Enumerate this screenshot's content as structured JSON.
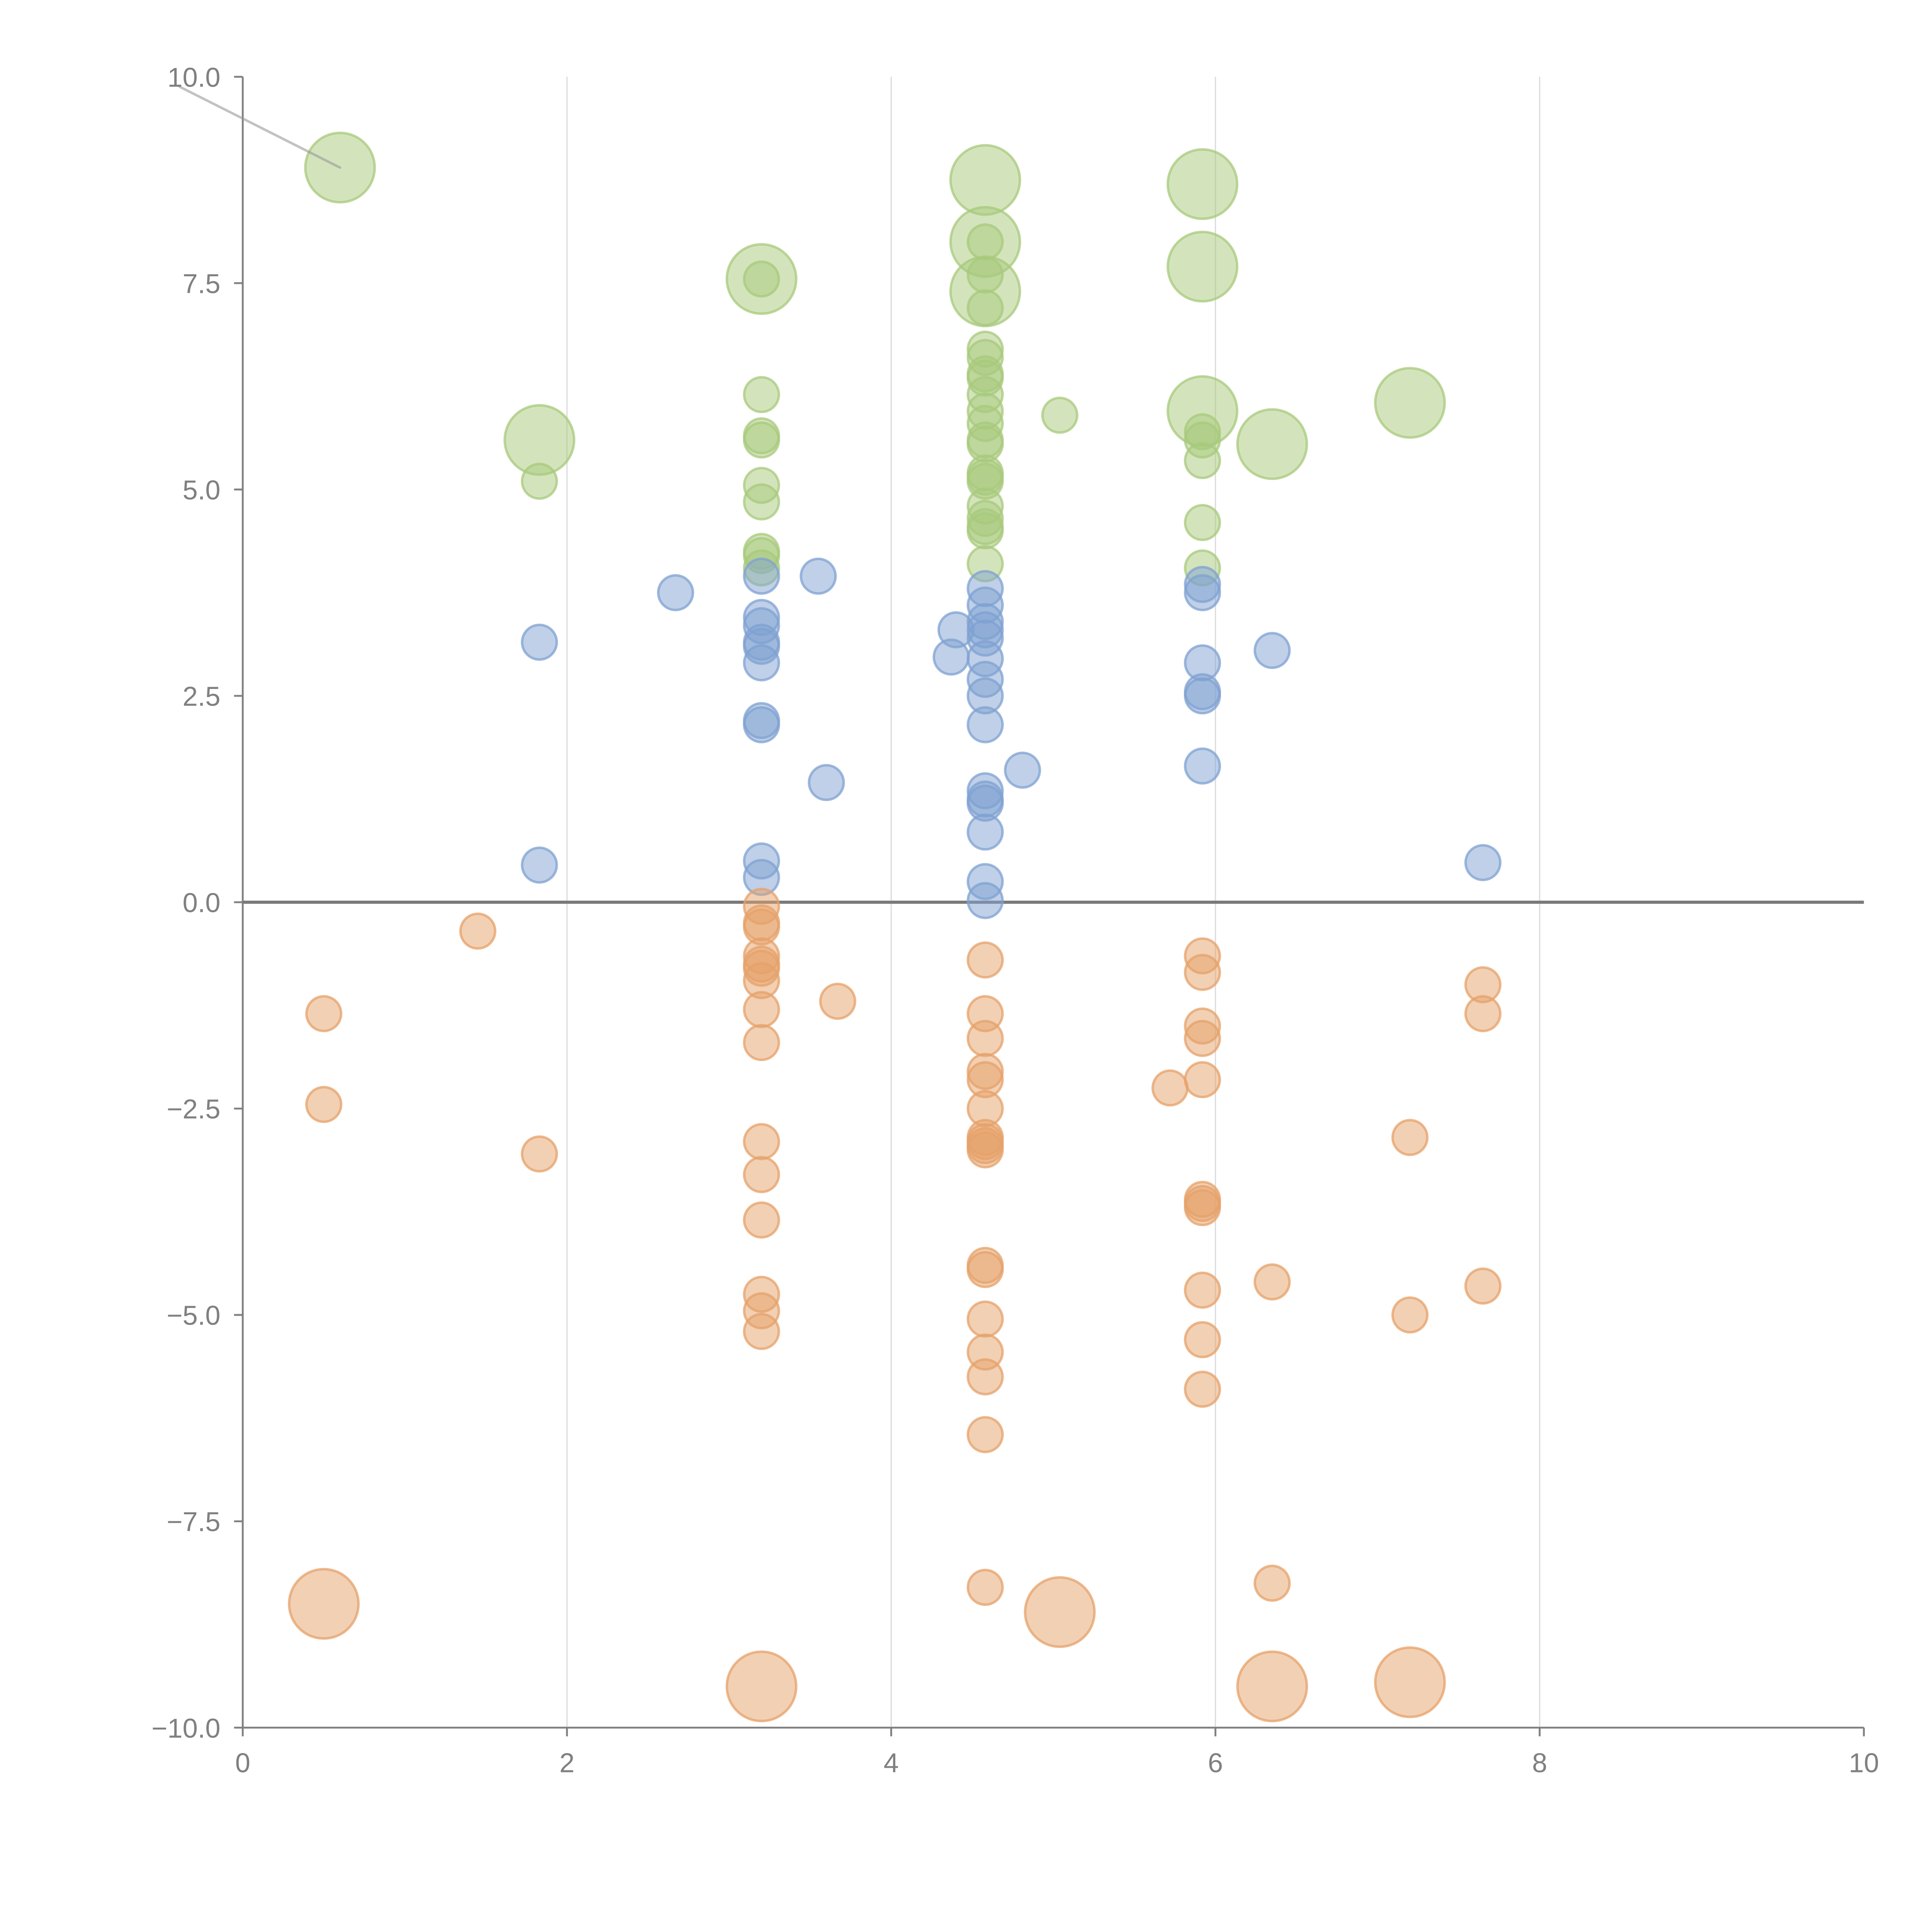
{
  "chart_data": {
    "type": "scatter",
    "title": "",
    "xlabel": "",
    "ylabel": "",
    "xlim": [
      0,
      10
    ],
    "ylim": [
      -10,
      10
    ],
    "grid": "vertical",
    "x_ticks": [
      "0",
      "2",
      "4",
      "6",
      "8",
      "10"
    ],
    "x_tick_values": [
      0,
      2,
      4,
      6,
      8,
      10
    ],
    "y_ticks": [
      "10.0",
      "7.5",
      "5.0",
      "2.5",
      "0.0",
      "−2.5",
      "−5.0",
      "−7.5",
      "−10.0"
    ],
    "y_tick_values": [
      10,
      7.5,
      5,
      2.5,
      0,
      -2.5,
      -5,
      -7.5,
      -10
    ],
    "size_note": "point format [x, y, size]; size 1 = small bubble, 4 = large bubble",
    "series": [
      {
        "name": "green",
        "color": "#a8c97c",
        "points": [
          [
            0.6,
            8.9,
            4
          ],
          [
            1.83,
            5.6,
            4
          ],
          [
            1.83,
            5.1,
            1
          ],
          [
            3.2,
            7.55,
            4
          ],
          [
            3.2,
            7.55,
            1
          ],
          [
            3.2,
            6.15,
            1
          ],
          [
            3.2,
            5.65,
            1
          ],
          [
            3.2,
            5.6,
            1
          ],
          [
            3.2,
            5.05,
            1
          ],
          [
            3.2,
            4.85,
            1
          ],
          [
            3.2,
            4.25,
            1
          ],
          [
            3.2,
            4.2,
            1
          ],
          [
            3.2,
            4.05,
            1
          ],
          [
            4.58,
            8.75,
            4
          ],
          [
            4.58,
            8.0,
            4
          ],
          [
            4.58,
            8.0,
            1
          ],
          [
            4.58,
            7.6,
            1
          ],
          [
            4.58,
            7.4,
            4
          ],
          [
            4.58,
            7.2,
            1
          ],
          [
            4.58,
            6.7,
            1
          ],
          [
            4.58,
            6.6,
            1
          ],
          [
            4.58,
            6.4,
            1
          ],
          [
            4.58,
            6.35,
            1
          ],
          [
            4.58,
            6.15,
            1
          ],
          [
            4.58,
            5.95,
            1
          ],
          [
            4.58,
            5.8,
            1
          ],
          [
            4.58,
            5.6,
            1
          ],
          [
            4.58,
            5.55,
            1
          ],
          [
            4.58,
            5.2,
            1
          ],
          [
            4.58,
            5.15,
            1
          ],
          [
            4.58,
            5.1,
            1
          ],
          [
            4.58,
            4.8,
            1
          ],
          [
            4.58,
            4.65,
            1
          ],
          [
            4.58,
            4.55,
            1
          ],
          [
            4.58,
            4.5,
            1
          ],
          [
            4.58,
            4.1,
            1
          ],
          [
            5.04,
            5.9,
            1
          ],
          [
            5.92,
            8.7,
            4
          ],
          [
            5.92,
            7.7,
            4
          ],
          [
            5.92,
            5.95,
            4
          ],
          [
            5.92,
            5.7,
            1
          ],
          [
            5.92,
            5.6,
            1
          ],
          [
            5.92,
            5.35,
            1
          ],
          [
            5.92,
            4.6,
            1
          ],
          [
            5.92,
            4.05,
            1
          ],
          [
            6.35,
            5.55,
            4
          ],
          [
            7.2,
            6.05,
            4
          ]
        ]
      },
      {
        "name": "blue",
        "color": "#7fa2d2",
        "points": [
          [
            1.83,
            3.15,
            1
          ],
          [
            1.83,
            0.45,
            1
          ],
          [
            2.67,
            3.75,
            1
          ],
          [
            3.55,
            3.95,
            1
          ],
          [
            3.6,
            1.45,
            1
          ],
          [
            3.2,
            3.95,
            1
          ],
          [
            3.2,
            3.45,
            1
          ],
          [
            3.2,
            3.35,
            1
          ],
          [
            3.2,
            3.15,
            1
          ],
          [
            3.2,
            3.1,
            1
          ],
          [
            3.2,
            2.9,
            1
          ],
          [
            3.2,
            2.2,
            1
          ],
          [
            3.2,
            2.15,
            1
          ],
          [
            3.2,
            0.5,
            1
          ],
          [
            3.2,
            0.3,
            1
          ],
          [
            4.4,
            3.3,
            1
          ],
          [
            4.37,
            2.97,
            1
          ],
          [
            4.58,
            3.8,
            1
          ],
          [
            4.58,
            3.6,
            1
          ],
          [
            4.58,
            3.4,
            1
          ],
          [
            4.58,
            3.3,
            1
          ],
          [
            4.58,
            3.2,
            1
          ],
          [
            4.58,
            2.95,
            1
          ],
          [
            4.58,
            2.7,
            1
          ],
          [
            4.58,
            2.5,
            1
          ],
          [
            4.58,
            2.15,
            1
          ],
          [
            4.58,
            1.35,
            1
          ],
          [
            4.58,
            1.25,
            1
          ],
          [
            4.58,
            1.2,
            1
          ],
          [
            4.58,
            0.85,
            1
          ],
          [
            4.58,
            0.25,
            1
          ],
          [
            4.58,
            0.02,
            1
          ],
          [
            4.81,
            1.6,
            1
          ],
          [
            5.92,
            3.85,
            1
          ],
          [
            5.92,
            3.75,
            1
          ],
          [
            5.92,
            2.9,
            1
          ],
          [
            5.92,
            2.55,
            1
          ],
          [
            5.92,
            2.5,
            1
          ],
          [
            5.92,
            1.65,
            1
          ],
          [
            6.35,
            3.05,
            1
          ],
          [
            7.65,
            0.48,
            1
          ]
        ]
      },
      {
        "name": "orange",
        "color": "#e6a26a",
        "points": [
          [
            0.5,
            -1.35,
            1
          ],
          [
            0.5,
            -2.45,
            1
          ],
          [
            0.5,
            -8.5,
            4
          ],
          [
            1.45,
            -0.35,
            1
          ],
          [
            1.83,
            -3.05,
            1
          ],
          [
            3.2,
            -0.05,
            1
          ],
          [
            3.2,
            -0.25,
            1
          ],
          [
            3.2,
            -0.3,
            1
          ],
          [
            3.2,
            -0.65,
            1
          ],
          [
            3.2,
            -0.75,
            1
          ],
          [
            3.2,
            -0.8,
            1
          ],
          [
            3.2,
            -0.95,
            1
          ],
          [
            3.2,
            -1.3,
            1
          ],
          [
            3.2,
            -1.7,
            1
          ],
          [
            3.2,
            -2.9,
            1
          ],
          [
            3.2,
            -3.3,
            1
          ],
          [
            3.2,
            -3.85,
            1
          ],
          [
            3.2,
            -4.75,
            1
          ],
          [
            3.2,
            -4.95,
            1
          ],
          [
            3.2,
            -5.2,
            1
          ],
          [
            3.2,
            -9.5,
            4
          ],
          [
            3.67,
            -1.2,
            1
          ],
          [
            4.58,
            -0.7,
            1
          ],
          [
            4.58,
            -1.35,
            1
          ],
          [
            4.58,
            -1.65,
            1
          ],
          [
            4.58,
            -2.05,
            1
          ],
          [
            4.58,
            -2.15,
            1
          ],
          [
            4.58,
            -2.5,
            1
          ],
          [
            4.58,
            -2.85,
            1
          ],
          [
            4.58,
            -2.9,
            1
          ],
          [
            4.58,
            -2.95,
            1
          ],
          [
            4.58,
            -3.0,
            1
          ],
          [
            4.58,
            -4.4,
            1
          ],
          [
            4.58,
            -4.45,
            1
          ],
          [
            4.58,
            -5.05,
            1
          ],
          [
            4.58,
            -5.45,
            1
          ],
          [
            4.58,
            -5.75,
            1
          ],
          [
            4.58,
            -6.45,
            1
          ],
          [
            4.58,
            -8.3,
            1
          ],
          [
            5.04,
            -8.6,
            4
          ],
          [
            5.72,
            -2.25,
            1
          ],
          [
            5.92,
            -0.65,
            1
          ],
          [
            5.92,
            -0.85,
            1
          ],
          [
            5.92,
            -1.5,
            1
          ],
          [
            5.92,
            -1.65,
            1
          ],
          [
            5.92,
            -2.15,
            1
          ],
          [
            5.92,
            -3.6,
            1
          ],
          [
            5.92,
            -3.65,
            1
          ],
          [
            5.92,
            -3.7,
            1
          ],
          [
            5.92,
            -4.7,
            1
          ],
          [
            5.92,
            -5.3,
            1
          ],
          [
            5.92,
            -5.9,
            1
          ],
          [
            6.35,
            -4.6,
            1
          ],
          [
            6.35,
            -8.25,
            1
          ],
          [
            6.35,
            -9.5,
            4
          ],
          [
            7.2,
            -2.85,
            1
          ],
          [
            7.2,
            -5.0,
            1
          ],
          [
            7.2,
            -9.45,
            4
          ],
          [
            7.65,
            -1.0,
            1
          ],
          [
            7.65,
            -1.35,
            1
          ],
          [
            7.65,
            -4.65,
            1
          ]
        ]
      }
    ]
  }
}
